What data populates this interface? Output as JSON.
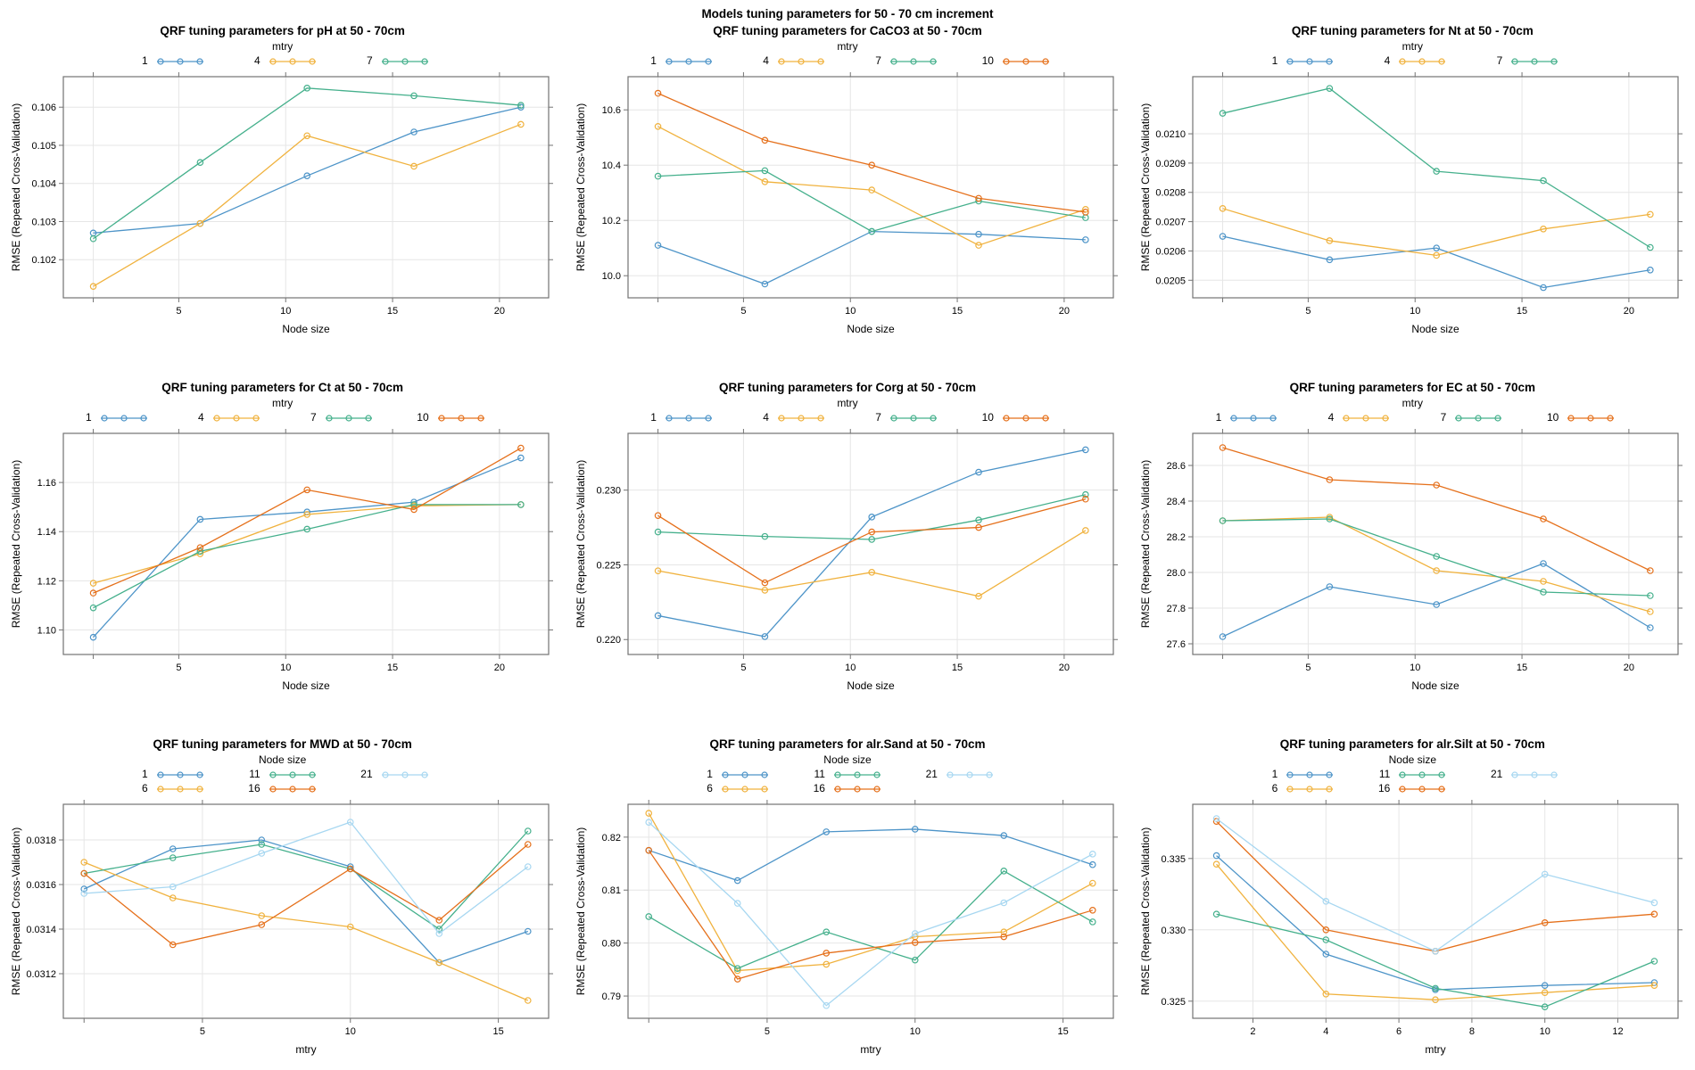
{
  "figure_title": "Models tuning parameters for 50 - 70 cm increment",
  "chart_data": [
    {
      "type": "line",
      "title": "QRF tuning parameters for pH at 50 - 70cm",
      "legend_title": "mtry",
      "xlabel": "Node size",
      "ylabel": "RMSE (Repeated Cross-Validation)",
      "x": [
        1,
        6,
        11,
        16,
        21
      ],
      "xlim": [
        -0.4,
        22.3
      ],
      "ylim": [
        0.101,
        0.1068
      ],
      "xticks": {
        "values": [
          5,
          10,
          15,
          20
        ],
        "labels": [
          "5",
          "10",
          "15",
          "20"
        ],
        "minor": [
          1
        ]
      },
      "yticks": {
        "values": [
          0.102,
          0.103,
          0.104,
          0.105,
          0.106
        ],
        "labels": [
          "0.102",
          "0.103",
          "0.104",
          "0.105",
          "0.106"
        ]
      },
      "series": [
        {
          "name": "1",
          "color": "#4d94c8",
          "values": [
            0.1027,
            0.10295,
            0.1042,
            0.10535,
            0.106
          ]
        },
        {
          "name": "4",
          "color": "#f0b23e",
          "values": [
            0.1013,
            0.10295,
            0.10525,
            0.10445,
            0.10555
          ]
        },
        {
          "name": "7",
          "color": "#45b08c",
          "values": [
            0.10255,
            0.10455,
            0.1065,
            0.1063,
            0.10605
          ]
        }
      ]
    },
    {
      "type": "line",
      "title": "QRF tuning parameters for CaCO3 at 50 - 70cm",
      "legend_title": "mtry",
      "xlabel": "Node size",
      "ylabel": "RMSE (Repeated Cross-Validation)",
      "x": [
        1,
        6,
        11,
        16,
        21
      ],
      "xlim": [
        -0.4,
        22.3
      ],
      "ylim": [
        9.92,
        10.72
      ],
      "xticks": {
        "values": [
          5,
          10,
          15,
          20
        ],
        "labels": [
          "5",
          "10",
          "15",
          "20"
        ],
        "minor": [
          1
        ]
      },
      "yticks": {
        "values": [
          10.0,
          10.2,
          10.4,
          10.6
        ],
        "labels": [
          "10.0",
          "10.2",
          "10.4",
          "10.6"
        ]
      },
      "series": [
        {
          "name": "1",
          "color": "#4d94c8",
          "values": [
            10.11,
            9.97,
            10.16,
            10.15,
            10.13
          ]
        },
        {
          "name": "4",
          "color": "#f0b23e",
          "values": [
            10.54,
            10.34,
            10.31,
            10.11,
            10.24
          ]
        },
        {
          "name": "7",
          "color": "#45b08c",
          "values": [
            10.36,
            10.38,
            10.16,
            10.27,
            10.21
          ]
        },
        {
          "name": "10",
          "color": "#e5701b",
          "values": [
            10.66,
            10.49,
            10.4,
            10.28,
            10.23
          ]
        }
      ]
    },
    {
      "type": "line",
      "title": "QRF tuning parameters for Nt at 50 - 70cm",
      "legend_title": "mtry",
      "xlabel": "Node size",
      "ylabel": "RMSE (Repeated Cross-Validation)",
      "x": [
        1,
        6,
        11,
        16,
        21
      ],
      "xlim": [
        -0.4,
        22.3
      ],
      "ylim": [
        0.02044,
        0.021195
      ],
      "xticks": {
        "values": [
          5,
          10,
          15,
          20
        ],
        "labels": [
          "5",
          "10",
          "15",
          "20"
        ],
        "minor": [
          1
        ]
      },
      "yticks": {
        "values": [
          0.0205,
          0.0206,
          0.0207,
          0.0208,
          0.0209,
          0.021
        ],
        "labels": [
          "0.0205",
          "0.0206",
          "0.0207",
          "0.0208",
          "0.0209",
          "0.0210"
        ]
      },
      "series": [
        {
          "name": "1",
          "color": "#4d94c8",
          "values": [
            0.02065,
            0.02057,
            0.02061,
            0.020475,
            0.020535
          ]
        },
        {
          "name": "4",
          "color": "#f0b23e",
          "values": [
            0.020745,
            0.020635,
            0.020585,
            0.020675,
            0.020725
          ]
        },
        {
          "name": "7",
          "color": "#45b08c",
          "values": [
            0.02107,
            0.021155,
            0.020872,
            0.02084,
            0.020612
          ]
        }
      ]
    },
    {
      "type": "line",
      "title": "QRF tuning parameters for Ct at 50 - 70cm",
      "legend_title": "mtry",
      "xlabel": "Node size",
      "ylabel": "RMSE (Repeated Cross-Validation)",
      "x": [
        1,
        6,
        11,
        16,
        21
      ],
      "xlim": [
        -0.4,
        22.3
      ],
      "ylim": [
        1.09,
        1.18
      ],
      "xticks": {
        "values": [
          5,
          10,
          15,
          20
        ],
        "labels": [
          "5",
          "10",
          "15",
          "20"
        ],
        "minor": [
          1
        ]
      },
      "yticks": {
        "values": [
          1.1,
          1.12,
          1.14,
          1.16
        ],
        "labels": [
          "1.10",
          "1.12",
          "1.14",
          "1.16"
        ]
      },
      "series": [
        {
          "name": "1",
          "color": "#4d94c8",
          "values": [
            1.097,
            1.145,
            1.148,
            1.152,
            1.17
          ]
        },
        {
          "name": "4",
          "color": "#f0b23e",
          "values": [
            1.119,
            1.131,
            1.147,
            1.1505,
            1.151
          ]
        },
        {
          "name": "7",
          "color": "#45b08c",
          "values": [
            1.109,
            1.132,
            1.141,
            1.151,
            1.151
          ]
        },
        {
          "name": "10",
          "color": "#e5701b",
          "values": [
            1.115,
            1.1335,
            1.157,
            1.149,
            1.174
          ]
        }
      ]
    },
    {
      "type": "line",
      "title": "QRF tuning parameters for Corg at 50 - 70cm",
      "legend_title": "mtry",
      "xlabel": "Node size",
      "ylabel": "RMSE (Repeated Cross-Validation)",
      "x": [
        1,
        6,
        11,
        16,
        21
      ],
      "xlim": [
        -0.4,
        22.3
      ],
      "ylim": [
        0.219,
        0.2338
      ],
      "xticks": {
        "values": [
          5,
          10,
          15,
          20
        ],
        "labels": [
          "5",
          "10",
          "15",
          "20"
        ],
        "minor": [
          1
        ]
      },
      "yticks": {
        "values": [
          0.22,
          0.225,
          0.23
        ],
        "labels": [
          "0.220",
          "0.225",
          "0.230"
        ]
      },
      "series": [
        {
          "name": "1",
          "color": "#4d94c8",
          "values": [
            0.2216,
            0.2202,
            0.2282,
            0.2312,
            0.2327
          ]
        },
        {
          "name": "4",
          "color": "#f0b23e",
          "values": [
            0.2246,
            0.2233,
            0.2245,
            0.2229,
            0.2273
          ]
        },
        {
          "name": "7",
          "color": "#45b08c",
          "values": [
            0.2272,
            0.2269,
            0.2267,
            0.228,
            0.2297
          ]
        },
        {
          "name": "10",
          "color": "#e5701b",
          "values": [
            0.2283,
            0.2238,
            0.2272,
            0.2275,
            0.2294
          ]
        }
      ]
    },
    {
      "type": "line",
      "title": "QRF tuning parameters for EC at 50 - 70cm",
      "legend_title": "mtry",
      "xlabel": "Node size",
      "ylabel": "RMSE (Repeated Cross-Validation)",
      "x": [
        1,
        6,
        11,
        16,
        21
      ],
      "xlim": [
        -0.4,
        22.3
      ],
      "ylim": [
        27.54,
        28.78
      ],
      "xticks": {
        "values": [
          5,
          10,
          15,
          20
        ],
        "labels": [
          "5",
          "10",
          "15",
          "20"
        ],
        "minor": [
          1
        ]
      },
      "yticks": {
        "values": [
          27.6,
          27.8,
          28.0,
          28.2,
          28.4,
          28.6
        ],
        "labels": [
          "27.6",
          "27.8",
          "28.0",
          "28.2",
          "28.4",
          "28.6"
        ]
      },
      "series": [
        {
          "name": "1",
          "color": "#4d94c8",
          "values": [
            27.64,
            27.92,
            27.82,
            28.05,
            27.69
          ]
        },
        {
          "name": "4",
          "color": "#f0b23e",
          "values": [
            28.29,
            28.31,
            28.01,
            27.95,
            27.78
          ]
        },
        {
          "name": "7",
          "color": "#45b08c",
          "values": [
            28.29,
            28.3,
            28.09,
            27.89,
            27.87
          ]
        },
        {
          "name": "10",
          "color": "#e5701b",
          "values": [
            28.7,
            28.52,
            28.49,
            28.3,
            28.01
          ]
        }
      ]
    },
    {
      "type": "line",
      "title": "QRF tuning parameters for MWD at 50 - 70cm",
      "legend_title": "Node size",
      "xlabel": "mtry",
      "ylabel": "RMSE (Repeated Cross-Validation)",
      "x": [
        1,
        4,
        7,
        10,
        13,
        16
      ],
      "xlim": [
        0.3,
        16.7
      ],
      "ylim": [
        0.031,
        0.03196
      ],
      "xticks": {
        "values": [
          5,
          10,
          15
        ],
        "labels": [
          "5",
          "10",
          "15"
        ],
        "minor": [
          1
        ]
      },
      "yticks": {
        "values": [
          0.0312,
          0.0314,
          0.0316,
          0.0318
        ],
        "labels": [
          "0.0312",
          "0.0314",
          "0.0316",
          "0.0318"
        ]
      },
      "series": [
        {
          "name": "1",
          "color": "#4d94c8",
          "values": [
            0.03158,
            0.03176,
            0.0318,
            0.03168,
            0.03125,
            0.03139
          ]
        },
        {
          "name": "6",
          "color": "#f0b23e",
          "values": [
            0.0317,
            0.03154,
            0.03146,
            0.03141,
            0.03125,
            0.03108
          ]
        },
        {
          "name": "11",
          "color": "#45b08c",
          "values": [
            0.03165,
            0.03172,
            0.03178,
            0.03167,
            0.0314,
            0.03184
          ]
        },
        {
          "name": "16",
          "color": "#e5701b",
          "values": [
            0.03165,
            0.03133,
            0.03142,
            0.03167,
            0.03144,
            0.03178
          ]
        },
        {
          "name": "21",
          "color": "#a7d7f1",
          "values": [
            0.03156,
            0.03159,
            0.03174,
            0.03188,
            0.03138,
            0.03168
          ]
        }
      ]
    },
    {
      "type": "line",
      "title": "QRF tuning parameters for alr.Sand at 50 - 70cm",
      "legend_title": "Node size",
      "xlabel": "mtry",
      "ylabel": "RMSE (Repeated Cross-Validation)",
      "x": [
        1,
        4,
        7,
        10,
        13,
        16
      ],
      "xlim": [
        0.3,
        16.7
      ],
      "ylim": [
        0.7858,
        0.8262
      ],
      "xticks": {
        "values": [
          5,
          10,
          15
        ],
        "labels": [
          "5",
          "10",
          "15"
        ],
        "minor": [
          1
        ]
      },
      "yticks": {
        "values": [
          0.79,
          0.8,
          0.81,
          0.82
        ],
        "labels": [
          "0.79",
          "0.80",
          "0.81",
          "0.82"
        ]
      },
      "series": [
        {
          "name": "1",
          "color": "#4d94c8",
          "values": [
            0.8175,
            0.8118,
            0.821,
            0.8215,
            0.8203,
            0.8148
          ]
        },
        {
          "name": "6",
          "color": "#f0b23e",
          "values": [
            0.8245,
            0.7948,
            0.796,
            0.8012,
            0.8021,
            0.8113
          ]
        },
        {
          "name": "11",
          "color": "#45b08c",
          "values": [
            0.805,
            0.7952,
            0.8021,
            0.7968,
            0.8136,
            0.804
          ]
        },
        {
          "name": "16",
          "color": "#e5701b",
          "values": [
            0.8175,
            0.7932,
            0.7981,
            0.8001,
            0.8012,
            0.8062
          ]
        },
        {
          "name": "21",
          "color": "#a7d7f1",
          "values": [
            0.8228,
            0.8075,
            0.7882,
            0.8018,
            0.8076,
            0.8168
          ]
        }
      ]
    },
    {
      "type": "line",
      "title": "QRF tuning parameters for alr.Silt at 50 - 70cm",
      "legend_title": "Node size",
      "xlabel": "mtry",
      "ylabel": "RMSE (Repeated Cross-Validation)",
      "x": [
        1,
        4,
        7,
        10,
        13
      ],
      "xlim": [
        0.35,
        13.65
      ],
      "ylim": [
        0.3238,
        0.3388
      ],
      "xticks": {
        "values": [
          2,
          4,
          6,
          8,
          10,
          12
        ],
        "labels": [
          "2",
          "4",
          "6",
          "8",
          "10",
          "12"
        ],
        "minor": []
      },
      "yticks": {
        "values": [
          0.325,
          0.33,
          0.335
        ],
        "labels": [
          "0.325",
          "0.330",
          "0.335"
        ]
      },
      "series": [
        {
          "name": "1",
          "color": "#4d94c8",
          "values": [
            0.3352,
            0.3283,
            0.3258,
            0.3261,
            0.3263
          ]
        },
        {
          "name": "6",
          "color": "#f0b23e",
          "values": [
            0.3346,
            0.3255,
            0.3251,
            0.3256,
            0.3261
          ]
        },
        {
          "name": "11",
          "color": "#45b08c",
          "values": [
            0.3311,
            0.3293,
            0.3259,
            0.3246,
            0.3278
          ]
        },
        {
          "name": "16",
          "color": "#e5701b",
          "values": [
            0.3376,
            0.33,
            0.3285,
            0.3305,
            0.3311
          ]
        },
        {
          "name": "21",
          "color": "#a7d7f1",
          "values": [
            0.3378,
            0.332,
            0.3285,
            0.3339,
            0.3319
          ]
        }
      ]
    }
  ]
}
